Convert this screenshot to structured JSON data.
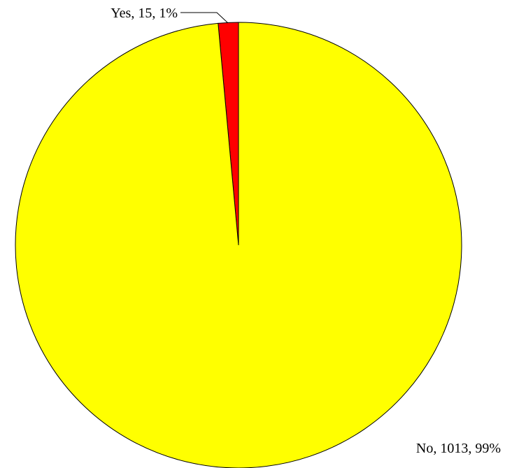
{
  "chart_data": {
    "type": "pie",
    "categories": [
      "Yes",
      "No"
    ],
    "values": [
      15,
      1013
    ],
    "percent_labels": [
      "1%",
      "99%"
    ],
    "colors": [
      "#ff0000",
      "#ffff00"
    ],
    "labels": [
      "Yes, 15, 1%",
      "No, 1013, 99%"
    ],
    "start": "12 o'clock",
    "direction": "counter-clockwise",
    "legend": "none"
  }
}
